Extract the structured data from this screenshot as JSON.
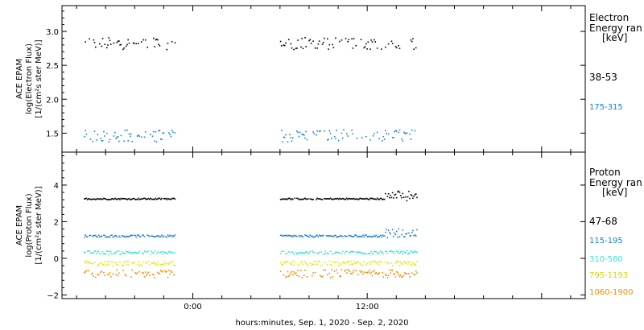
{
  "xlabel": "hours:minutes, Sep.  1, 2020 - Sep.  2, 2020",
  "x_ticks": [
    "0:00",
    "12:00"
  ],
  "colors": {
    "black": "#000000",
    "blue": "#1a7fd0",
    "cyan": "#3fe0d8",
    "yellow": "#e6e600",
    "orange": "#f08c00"
  },
  "chart_data": [
    {
      "type": "scatter",
      "panel": "electron",
      "ylabel_lines": [
        "ACE EPAM",
        "log(Electron Flux)",
        "[1/(cm²s ster MeV)]"
      ],
      "legend_title": [
        "Electron",
        "Energy ran",
        "[keV]"
      ],
      "ylim": [
        1.22,
        3.38
      ],
      "yticks": [
        "1.5",
        "2.0",
        "2.5",
        "3.0"
      ],
      "xlim_hours": [
        -9,
        27
      ],
      "data_gaps_hours": [
        [
          -1,
          6
        ]
      ],
      "series": [
        {
          "name": "38-53",
          "color": "#000000",
          "mean": 2.83,
          "jitter": 0.09,
          "sparse": 0.55,
          "segments": [
            [
              -7.5,
              -1.2
            ],
            [
              6,
              15.4
            ]
          ]
        },
        {
          "name": "175-315",
          "color": "#1a7fd0",
          "mean": 1.47,
          "jitter": 0.09,
          "sparse": 0.55,
          "segments": [
            [
              -7.5,
              -1.2
            ],
            [
              6,
              15.4
            ]
          ]
        }
      ]
    },
    {
      "type": "scatter",
      "panel": "proton",
      "ylabel_lines": [
        "ACE EPAM",
        "log(Proton Flux)",
        "[1/(cm²s ster MeV)]"
      ],
      "legend_title": [
        "Proton",
        "Energy ran",
        "[keV]"
      ],
      "ylim": [
        -2.2,
        5.8
      ],
      "yticks": [
        "−2",
        "0",
        "2",
        "4"
      ],
      "xlim_hours": [
        -9,
        27
      ],
      "series": [
        {
          "name": "47-68",
          "color": "#000000",
          "mean": 3.28,
          "jitter": 0.04,
          "sparse": 0.95,
          "segments": [
            [
              -7.5,
              -1.2
            ],
            [
              6,
              15.4
            ]
          ],
          "bump": {
            "from": 13.2,
            "to": 15.4,
            "add": 0.35,
            "jitter": 0.25
          }
        },
        {
          "name": "115-195",
          "color": "#1a7fd0",
          "mean": 1.25,
          "jitter": 0.06,
          "sparse": 0.9,
          "segments": [
            [
              -7.5,
              -1.2
            ],
            [
              6,
              15.4
            ]
          ],
          "bump": {
            "from": 13.2,
            "to": 15.4,
            "add": 0.3,
            "jitter": 0.25
          }
        },
        {
          "name": "310-580",
          "color": "#3fe0d8",
          "mean": 0.35,
          "jitter": 0.09,
          "sparse": 0.85,
          "segments": [
            [
              -7.5,
              -1.2
            ],
            [
              6,
              15.4
            ]
          ]
        },
        {
          "name": "795-1193",
          "color": "#e6e600",
          "mean": -0.25,
          "jitter": 0.13,
          "sparse": 0.8,
          "segments": [
            [
              -7.5,
              -1.2
            ],
            [
              6,
              15.4
            ]
          ]
        },
        {
          "name": "1060-1900",
          "color": "#f08c00",
          "mean": -0.8,
          "jitter": 0.22,
          "sparse": 0.75,
          "segments": [
            [
              -7.5,
              -1.2
            ],
            [
              6,
              15.4
            ]
          ]
        }
      ]
    }
  ]
}
